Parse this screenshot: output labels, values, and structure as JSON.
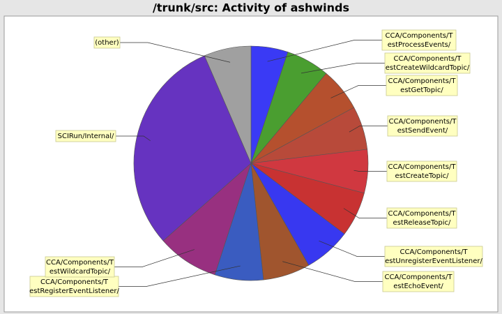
{
  "chart_data": {
    "type": "pie",
    "title": "/trunk/src: Activity of ashwinds",
    "categories": [
      [
        "CCA/Components/T",
        "estProcessEvents/"
      ],
      [
        "CCA/Components/T",
        "estCreateWildcardTopic/"
      ],
      [
        "CCA/Components/T",
        "estGetTopic/"
      ],
      [
        "CCA/Components/T",
        "estSendEvent/"
      ],
      [
        "CCA/Components/T",
        "estCreateTopic/"
      ],
      [
        "CCA/Components/T",
        "estReleaseTopic/"
      ],
      [
        "CCA/Components/T",
        "estUnregisterEventListener/"
      ],
      [
        "CCA/Components/T",
        "estEchoEvent/"
      ],
      [
        "CCA/Components/T",
        "estRegisterEventListener/"
      ],
      [
        "CCA/Components/T",
        "estWildcardTopic/"
      ],
      [
        "SCIRun/Internal/"
      ],
      [
        "(other)"
      ]
    ],
    "values": [
      5.1,
      6.0,
      6.0,
      6.0,
      6.0,
      6.2,
      6.5,
      6.5,
      6.7,
      8.5,
      30.0,
      6.5
    ],
    "colors": [
      "#3a3af5",
      "#4a9e30",
      "#b5502e",
      "#b84a3a",
      "#d03840",
      "#c83232",
      "#3838f0",
      "#a0552e",
      "#3a5cc0",
      "#983080",
      "#6633c0",
      "#a0a0a0"
    ]
  }
}
